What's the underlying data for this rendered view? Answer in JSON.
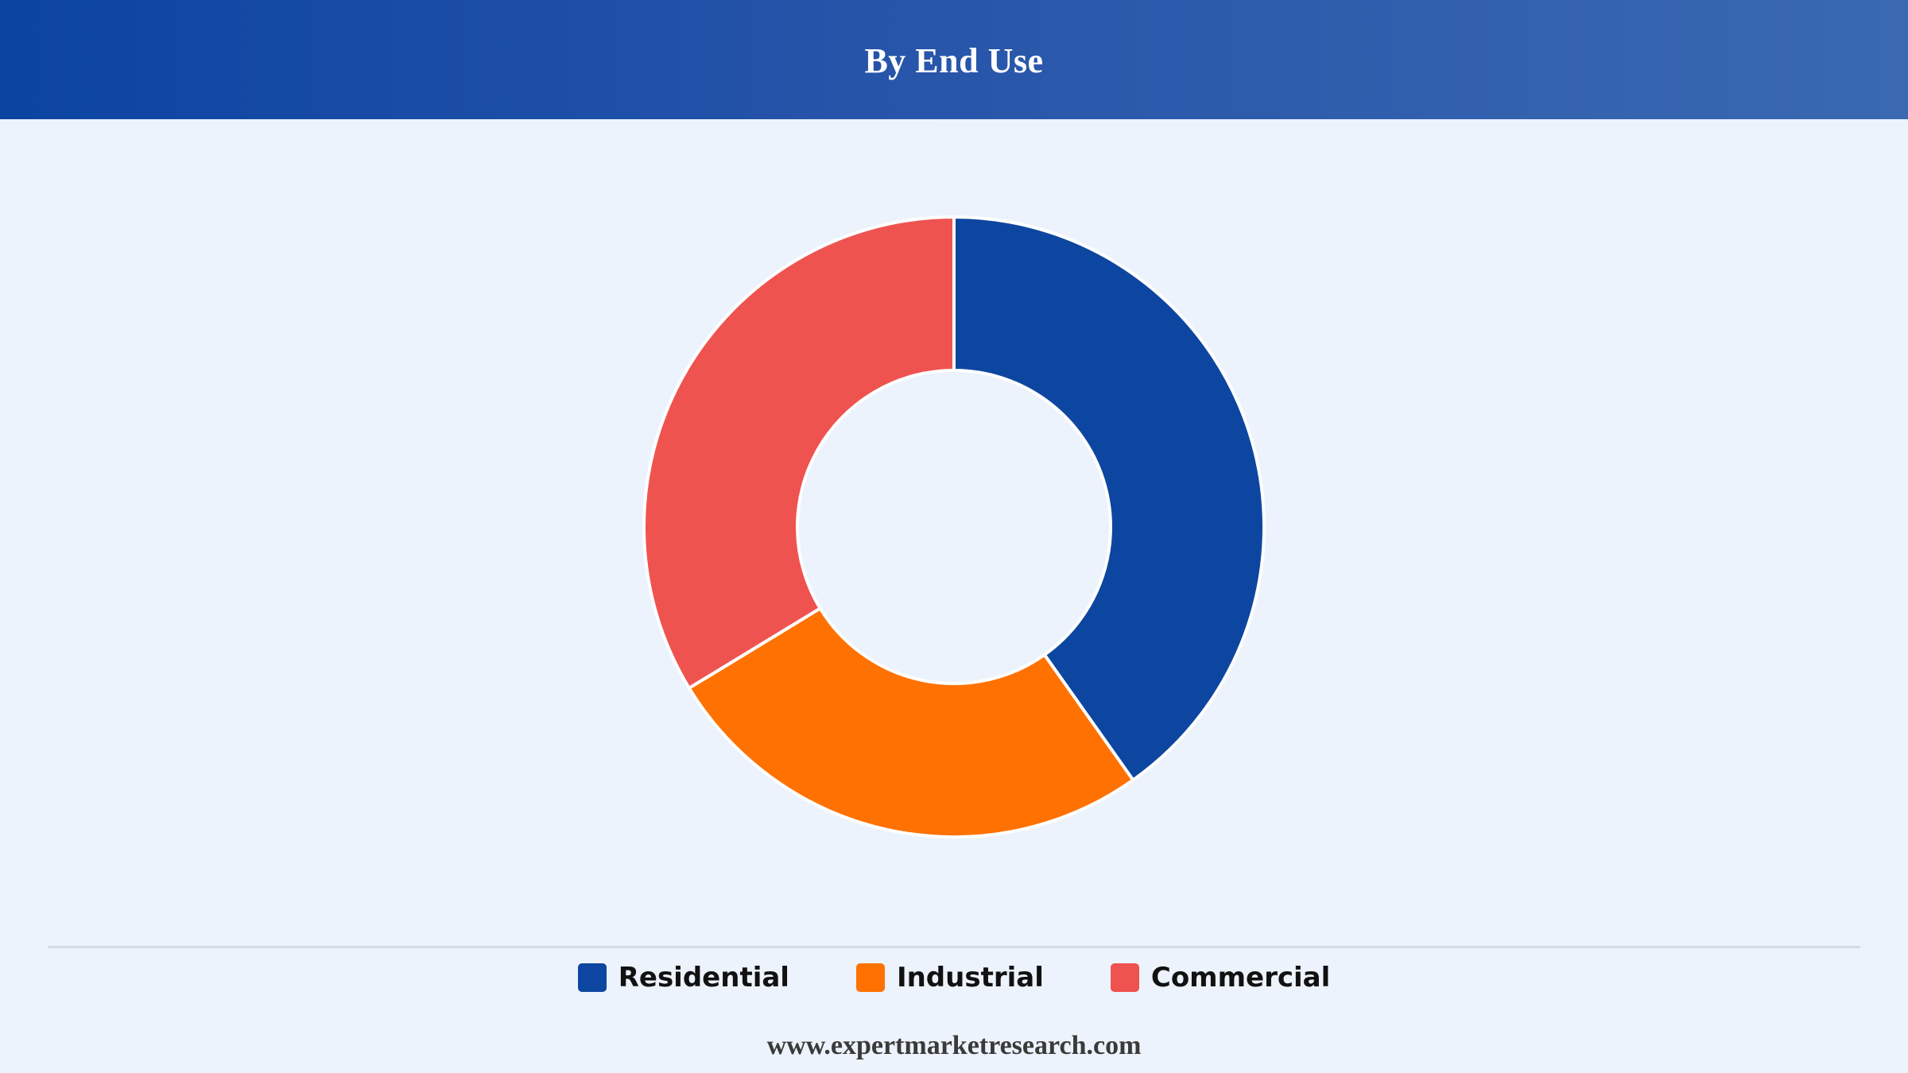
{
  "header": {
    "title": "By End Use"
  },
  "chart_data": {
    "type": "pie",
    "style": "donut",
    "title": "By End Use",
    "categories": [
      "Residential",
      "Industrial",
      "Commercial"
    ],
    "values": [
      40.2,
      26.1,
      33.7
    ],
    "unit": "%",
    "colors": [
      "#0d46a0",
      "#ff7100",
      "#ef5350"
    ],
    "start_angle_deg": 0,
    "direction": "clockwise",
    "legend_position": "bottom"
  },
  "legend": {
    "items": [
      {
        "label": "Residential",
        "color": "#0d46a0"
      },
      {
        "label": "Industrial",
        "color": "#ff7100"
      },
      {
        "label": "Commercial",
        "color": "#ef5350"
      }
    ]
  },
  "footer": {
    "website": "www.expertmarketresearch.com"
  },
  "colors": {
    "background": "#ecf3fc",
    "header_start": "#0c44a2",
    "header_end": "#3a69b2",
    "slice_border": "#ffffff"
  }
}
